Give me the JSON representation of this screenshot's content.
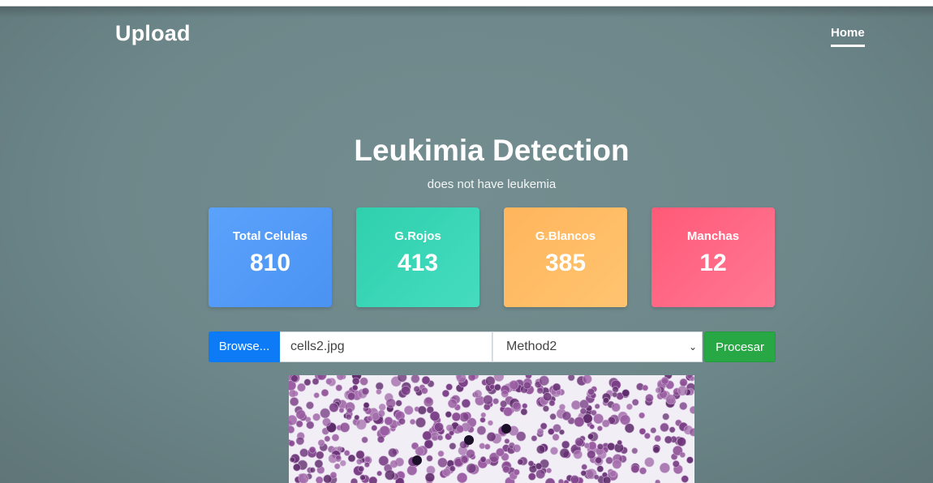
{
  "navbar": {
    "brand": "Upload",
    "home_label": "Home"
  },
  "header": {
    "title": "Leukimia Detection",
    "result": "does not have leukemia"
  },
  "stats": [
    {
      "label": "Total Celulas",
      "value": "810",
      "color": "#5aa2fb"
    },
    {
      "label": "G.Rojos",
      "value": "413",
      "color": "#2fd0ad"
    },
    {
      "label": "G.Blancos",
      "value": "385",
      "color": "#ffb55c"
    },
    {
      "label": "Manchas",
      "value": "12",
      "color": "#ff5a78"
    }
  ],
  "upload": {
    "browse_label": "Browse...",
    "filename": "cells2.jpg",
    "method_selected": "Method2",
    "process_label": "Procesar"
  },
  "colors": {
    "background": "#6f898c",
    "browse": "#0d7bf5",
    "process": "#28a745"
  }
}
